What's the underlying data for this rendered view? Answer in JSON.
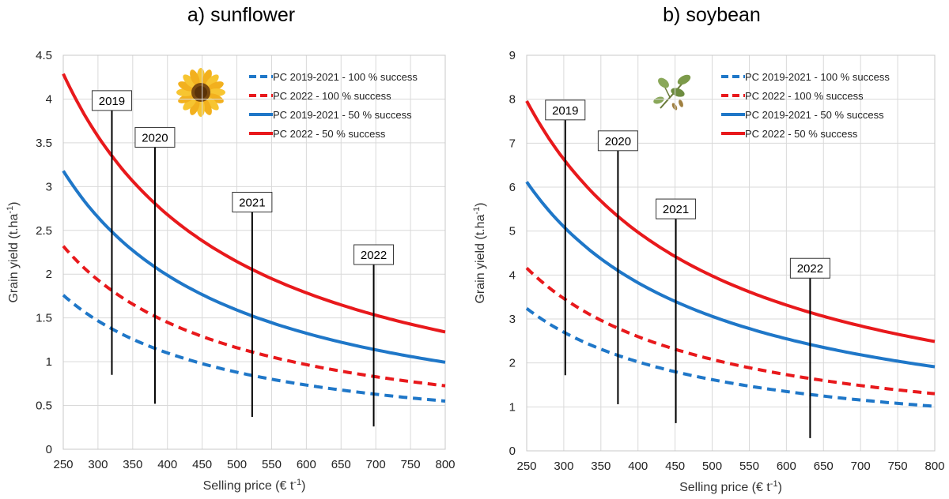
{
  "chart_data": [
    {
      "type": "line",
      "title": "a) sunflower",
      "image_icon": "sunflower-icon",
      "xlabel": "Selling price (€ t",
      "xlabel_sup": "-1",
      "xlabel_end": ")",
      "ylabel": "Grain yield (t.ha",
      "ylabel_sup": "-1",
      "ylabel_end": ")",
      "xlim": [
        250,
        800
      ],
      "ylim": [
        0,
        4.5
      ],
      "xticks": [
        250,
        300,
        350,
        400,
        450,
        500,
        550,
        600,
        650,
        700,
        750,
        800
      ],
      "yticks": [
        0,
        0.5,
        1,
        1.5,
        2,
        2.5,
        3,
        3.5,
        4,
        4.5
      ],
      "ytick_labels": [
        "0",
        "0.5",
        "1",
        "1.5",
        "2",
        "2.5",
        "3",
        "3.5",
        "4",
        "4.5"
      ],
      "grid": true,
      "series": [
        {
          "name": "PC 2019-2021 - 100 % success",
          "color": "#1F77C8",
          "dash": true,
          "k": 440
        },
        {
          "name": "PC 2022 - 100 % success",
          "color": "#E8191C",
          "dash": true,
          "k": 580
        },
        {
          "name": "PC 2019-2021 - 50 % success",
          "color": "#1F77C8",
          "dash": false,
          "k": 795
        },
        {
          "name": "PC 2022 - 50 % success",
          "color": "#E8191C",
          "dash": false,
          "k": 1072
        }
      ],
      "year_markers": [
        {
          "year": "2019",
          "x": 320,
          "y_top": 3.87,
          "y_bottom": 0.85
        },
        {
          "year": "2020",
          "x": 382,
          "y_top": 3.45,
          "y_bottom": 0.52
        },
        {
          "year": "2021",
          "x": 522,
          "y_top": 2.71,
          "y_bottom": 0.37
        },
        {
          "year": "2022",
          "x": 697,
          "y_top": 2.11,
          "y_bottom": 0.26
        }
      ]
    },
    {
      "type": "line",
      "title": "b) soybean",
      "image_icon": "soybean-plant-icon",
      "xlabel": "Selling price (€ t",
      "xlabel_sup": "-1",
      "xlabel_end": ")",
      "ylabel": "Grain yield (t.ha",
      "ylabel_sup": "-1",
      "ylabel_end": ")",
      "xlim": [
        250,
        800
      ],
      "ylim": [
        0,
        9
      ],
      "xticks": [
        250,
        300,
        350,
        400,
        450,
        500,
        550,
        600,
        650,
        700,
        750,
        800
      ],
      "yticks": [
        0,
        1,
        2,
        3,
        4,
        5,
        6,
        7,
        8,
        9
      ],
      "ytick_labels": [
        "0",
        "1",
        "2",
        "3",
        "4",
        "5",
        "6",
        "7",
        "8",
        "9"
      ],
      "grid": true,
      "series": [
        {
          "name": "PC 2019-2021 - 100 % success",
          "color": "#1F77C8",
          "dash": true,
          "k": 810
        },
        {
          "name": "PC 2022 - 100 % success",
          "color": "#E8191C",
          "dash": true,
          "k": 1040
        },
        {
          "name": "PC 2019-2021 - 50 % success",
          "color": "#1F77C8",
          "dash": false,
          "k": 1530
        },
        {
          "name": "PC 2022 - 50 % success",
          "color": "#E8191C",
          "dash": false,
          "k": 1990
        }
      ],
      "year_markers": [
        {
          "year": "2019",
          "x": 302,
          "y_top": 7.53,
          "y_bottom": 1.72
        },
        {
          "year": "2020",
          "x": 373,
          "y_top": 6.83,
          "y_bottom": 1.06
        },
        {
          "year": "2021",
          "x": 451,
          "y_top": 5.28,
          "y_bottom": 0.63
        },
        {
          "year": "2022",
          "x": 632,
          "y_top": 3.93,
          "y_bottom": 0.29
        }
      ]
    }
  ]
}
